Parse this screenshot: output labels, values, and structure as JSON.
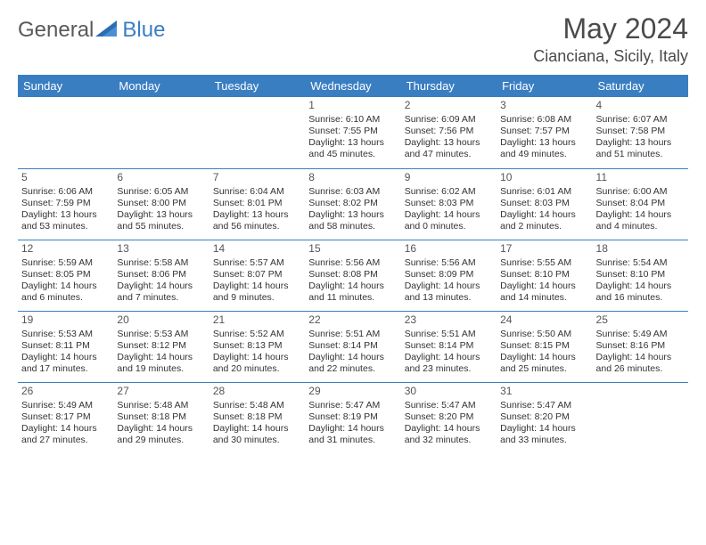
{
  "logo": {
    "gray": "General",
    "blue": "Blue"
  },
  "title": "May 2024",
  "location": "Cianciana, Sicily, Italy",
  "headers": [
    "Sunday",
    "Monday",
    "Tuesday",
    "Wednesday",
    "Thursday",
    "Friday",
    "Saturday"
  ],
  "colors": {
    "header_bg": "#3a7ec2",
    "header_fg": "#ffffff",
    "rule": "#3a7ec2"
  },
  "weeks": [
    [
      null,
      null,
      null,
      {
        "n": "1",
        "sr": "6:10 AM",
        "ss": "7:55 PM",
        "dl": "13 hours and 45 minutes."
      },
      {
        "n": "2",
        "sr": "6:09 AM",
        "ss": "7:56 PM",
        "dl": "13 hours and 47 minutes."
      },
      {
        "n": "3",
        "sr": "6:08 AM",
        "ss": "7:57 PM",
        "dl": "13 hours and 49 minutes."
      },
      {
        "n": "4",
        "sr": "6:07 AM",
        "ss": "7:58 PM",
        "dl": "13 hours and 51 minutes."
      }
    ],
    [
      {
        "n": "5",
        "sr": "6:06 AM",
        "ss": "7:59 PM",
        "dl": "13 hours and 53 minutes."
      },
      {
        "n": "6",
        "sr": "6:05 AM",
        "ss": "8:00 PM",
        "dl": "13 hours and 55 minutes."
      },
      {
        "n": "7",
        "sr": "6:04 AM",
        "ss": "8:01 PM",
        "dl": "13 hours and 56 minutes."
      },
      {
        "n": "8",
        "sr": "6:03 AM",
        "ss": "8:02 PM",
        "dl": "13 hours and 58 minutes."
      },
      {
        "n": "9",
        "sr": "6:02 AM",
        "ss": "8:03 PM",
        "dl": "14 hours and 0 minutes."
      },
      {
        "n": "10",
        "sr": "6:01 AM",
        "ss": "8:03 PM",
        "dl": "14 hours and 2 minutes."
      },
      {
        "n": "11",
        "sr": "6:00 AM",
        "ss": "8:04 PM",
        "dl": "14 hours and 4 minutes."
      }
    ],
    [
      {
        "n": "12",
        "sr": "5:59 AM",
        "ss": "8:05 PM",
        "dl": "14 hours and 6 minutes."
      },
      {
        "n": "13",
        "sr": "5:58 AM",
        "ss": "8:06 PM",
        "dl": "14 hours and 7 minutes."
      },
      {
        "n": "14",
        "sr": "5:57 AM",
        "ss": "8:07 PM",
        "dl": "14 hours and 9 minutes."
      },
      {
        "n": "15",
        "sr": "5:56 AM",
        "ss": "8:08 PM",
        "dl": "14 hours and 11 minutes."
      },
      {
        "n": "16",
        "sr": "5:56 AM",
        "ss": "8:09 PM",
        "dl": "14 hours and 13 minutes."
      },
      {
        "n": "17",
        "sr": "5:55 AM",
        "ss": "8:10 PM",
        "dl": "14 hours and 14 minutes."
      },
      {
        "n": "18",
        "sr": "5:54 AM",
        "ss": "8:10 PM",
        "dl": "14 hours and 16 minutes."
      }
    ],
    [
      {
        "n": "19",
        "sr": "5:53 AM",
        "ss": "8:11 PM",
        "dl": "14 hours and 17 minutes."
      },
      {
        "n": "20",
        "sr": "5:53 AM",
        "ss": "8:12 PM",
        "dl": "14 hours and 19 minutes."
      },
      {
        "n": "21",
        "sr": "5:52 AM",
        "ss": "8:13 PM",
        "dl": "14 hours and 20 minutes."
      },
      {
        "n": "22",
        "sr": "5:51 AM",
        "ss": "8:14 PM",
        "dl": "14 hours and 22 minutes."
      },
      {
        "n": "23",
        "sr": "5:51 AM",
        "ss": "8:14 PM",
        "dl": "14 hours and 23 minutes."
      },
      {
        "n": "24",
        "sr": "5:50 AM",
        "ss": "8:15 PM",
        "dl": "14 hours and 25 minutes."
      },
      {
        "n": "25",
        "sr": "5:49 AM",
        "ss": "8:16 PM",
        "dl": "14 hours and 26 minutes."
      }
    ],
    [
      {
        "n": "26",
        "sr": "5:49 AM",
        "ss": "8:17 PM",
        "dl": "14 hours and 27 minutes."
      },
      {
        "n": "27",
        "sr": "5:48 AM",
        "ss": "8:18 PM",
        "dl": "14 hours and 29 minutes."
      },
      {
        "n": "28",
        "sr": "5:48 AM",
        "ss": "8:18 PM",
        "dl": "14 hours and 30 minutes."
      },
      {
        "n": "29",
        "sr": "5:47 AM",
        "ss": "8:19 PM",
        "dl": "14 hours and 31 minutes."
      },
      {
        "n": "30",
        "sr": "5:47 AM",
        "ss": "8:20 PM",
        "dl": "14 hours and 32 minutes."
      },
      {
        "n": "31",
        "sr": "5:47 AM",
        "ss": "8:20 PM",
        "dl": "14 hours and 33 minutes."
      },
      null
    ]
  ],
  "labels": {
    "sunrise": "Sunrise: ",
    "sunset": "Sunset: ",
    "daylight": "Daylight: "
  }
}
